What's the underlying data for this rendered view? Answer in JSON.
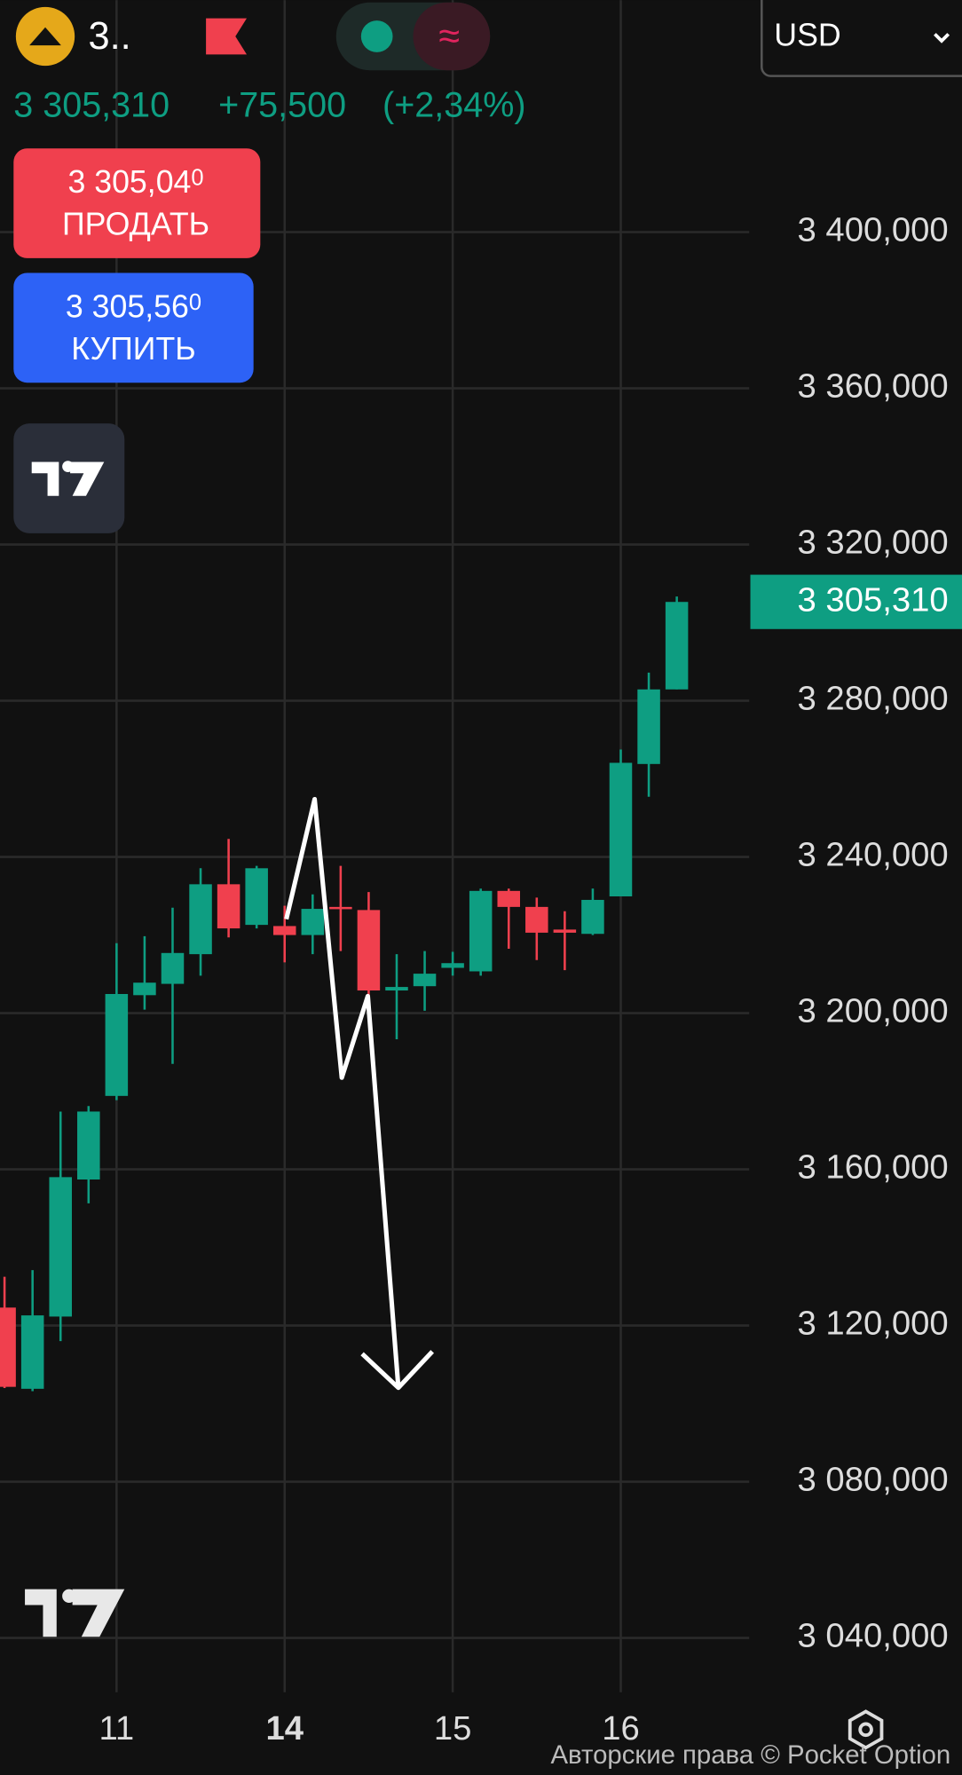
{
  "header": {
    "symbol": "3..",
    "price": "3 305,310",
    "change": "+75,500",
    "change_pct": "(+2,34%)",
    "currency": "USD"
  },
  "buttons": {
    "sell": {
      "price": "3 305,04",
      "price_tail": "0",
      "label": "ПРОДАТЬ"
    },
    "buy": {
      "price": "3 305,56",
      "price_tail": "0",
      "label": "КУПИТЬ"
    }
  },
  "footer": {
    "copyright": "Авторские права © Pocket Option"
  },
  "chart_data": {
    "type": "candlestick",
    "categories": [
      null,
      null,
      null,
      null,
      "11",
      null,
      null,
      null,
      null,
      null,
      "14",
      null,
      null,
      null,
      null,
      null,
      "15",
      null,
      null,
      null,
      null,
      null,
      "16",
      null,
      null
    ],
    "open": [
      3124.6,
      3103.8,
      3122.3,
      3157.4,
      3178.8,
      3204.6,
      3207.5,
      3215.1,
      3233.0,
      3222.6,
      3222.3,
      3220.0,
      3227.2,
      3226.4,
      3205.8,
      3206.9,
      3211.6,
      3210.7,
      3231.3,
      3227.2,
      3221.4,
      3220.3,
      3229.9,
      3263.8,
      3282.9
    ],
    "high": [
      3132.5,
      3134.2,
      3174.8,
      3176.2,
      3217.9,
      3219.7,
      3227.0,
      3237.1,
      3244.6,
      3237.7,
      3227.5,
      3230.4,
      3237.7,
      3231.0,
      3215.1,
      3215.9,
      3215.7,
      3231.9,
      3231.9,
      3229.6,
      3226.1,
      3231.9,
      3267.5,
      3287.2,
      3306.7
    ],
    "low": [
      3104.0,
      3103.2,
      3116.0,
      3151.3,
      3177.7,
      3200.9,
      3187.0,
      3209.6,
      3219.4,
      3221.7,
      3213.0,
      3215.1,
      3215.9,
      3204.3,
      3193.3,
      3200.6,
      3209.6,
      3209.6,
      3216.5,
      3213.6,
      3211.0,
      3220.0,
      3229.9,
      3255.4,
      3282.9
    ],
    "close": [
      3104.3,
      3122.6,
      3158.0,
      3174.8,
      3204.9,
      3207.8,
      3215.4,
      3233.0,
      3221.7,
      3237.1,
      3220.0,
      3226.7,
      3226.7,
      3205.8,
      3206.7,
      3210.1,
      3212.8,
      3231.3,
      3227.2,
      3220.6,
      3220.6,
      3229.0,
      3264.1,
      3282.9,
      3305.3
    ],
    "up_color": "#0e9e82",
    "down_color": "#f0404e",
    "ylim": [
      3026.1,
      3459.4
    ],
    "yticks": [
      {
        "value": 3040,
        "label": "3 040,000"
      },
      {
        "value": 3080,
        "label": "3 080,000"
      },
      {
        "value": 3120,
        "label": "3 120,000"
      },
      {
        "value": 3160,
        "label": "3 160,000"
      },
      {
        "value": 3200,
        "label": "3 200,000"
      },
      {
        "value": 3240,
        "label": "3 240,000"
      },
      {
        "value": 3280,
        "label": "3 280,000"
      },
      {
        "value": 3320,
        "label": "3 320,000"
      },
      {
        "value": 3360,
        "label": "3 360,000"
      },
      {
        "value": 3400,
        "label": "3 400,000"
      }
    ],
    "last_price": {
      "value": 3305.31,
      "label": "3 305,310"
    },
    "grid": true
  }
}
